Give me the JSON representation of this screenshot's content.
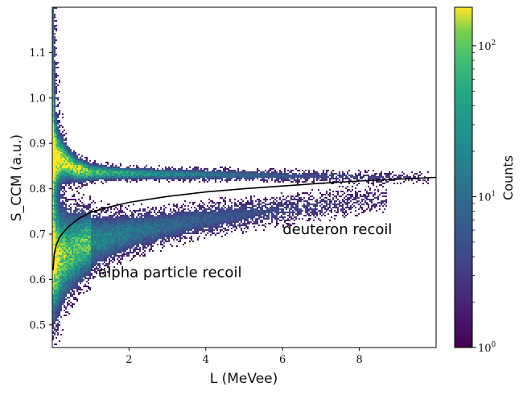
{
  "chart_data": {
    "type": "heatmap",
    "xlabel": "L (MeVee)",
    "ylabel": "S_CCM (a.u.)",
    "xlim": [
      0,
      10
    ],
    "ylim": [
      0.45,
      1.2
    ],
    "x_ticks": [
      2,
      4,
      6,
      8
    ],
    "x_tick_labels": [
      "2",
      "4",
      "6",
      "8"
    ],
    "y_ticks": [
      0.5,
      0.6,
      0.7,
      0.8,
      0.9,
      1.0,
      1.1
    ],
    "y_tick_labels": [
      "0.5",
      "0.6",
      "0.7",
      "0.8",
      "0.9",
      "1.0",
      "1.1"
    ],
    "colormap": "viridis",
    "colorbar": {
      "label": "Counts",
      "scale": "log",
      "range": [
        1,
        180
      ],
      "ticks": [
        1,
        10,
        100
      ],
      "tick_labels": [
        "10^0",
        "10^1",
        "10^2"
      ]
    },
    "bands": [
      {
        "label": "deuteron recoil",
        "center": [
          [
            0.1,
            0.87
          ],
          [
            0.3,
            0.86
          ],
          [
            0.6,
            0.845
          ],
          [
            1,
            0.838
          ],
          [
            2,
            0.835
          ],
          [
            4,
            0.833
          ],
          [
            6,
            0.83
          ],
          [
            8,
            0.828
          ],
          [
            9.8,
            0.826
          ]
        ]
      },
      {
        "label": "alpha particle recoil",
        "center": [
          [
            0.1,
            0.64
          ],
          [
            0.3,
            0.655
          ],
          [
            0.6,
            0.67
          ],
          [
            1,
            0.685
          ],
          [
            2,
            0.705
          ],
          [
            3,
            0.72
          ],
          [
            4,
            0.735
          ],
          [
            5,
            0.745
          ],
          [
            6,
            0.755
          ],
          [
            7,
            0.765
          ],
          [
            8,
            0.775
          ],
          [
            8.5,
            0.78
          ]
        ]
      }
    ],
    "curve": {
      "color": "#000000",
      "points": [
        [
          0.02,
          0.62
        ],
        [
          0.05,
          0.655
        ],
        [
          0.1,
          0.675
        ],
        [
          0.2,
          0.695
        ],
        [
          0.4,
          0.715
        ],
        [
          0.7,
          0.735
        ],
        [
          1,
          0.748
        ],
        [
          1.5,
          0.76
        ],
        [
          2,
          0.77
        ],
        [
          3,
          0.783
        ],
        [
          4,
          0.793
        ],
        [
          5,
          0.8
        ],
        [
          6,
          0.806
        ],
        [
          7,
          0.812
        ],
        [
          8,
          0.817
        ],
        [
          9,
          0.821
        ],
        [
          10,
          0.825
        ]
      ]
    },
    "annotations": [
      {
        "text": "deuteron recoil",
        "x": 6.0,
        "y": 0.7
      },
      {
        "text": "alpha particle recoil",
        "x": 1.2,
        "y": 0.605
      }
    ]
  }
}
